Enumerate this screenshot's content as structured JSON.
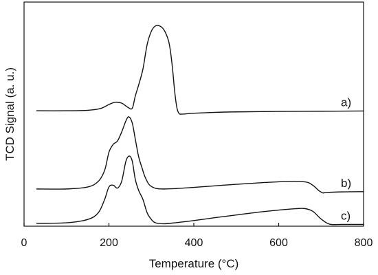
{
  "chart_data": {
    "type": "line",
    "xlabel": "Temperature (°C)",
    "ylabel": "TCD Signal (a. u.)",
    "xlim": [
      0,
      800
    ],
    "ylim": [
      0,
      100
    ],
    "xticks": [
      0,
      200,
      400,
      600,
      800
    ],
    "y_tick_labels": false,
    "grid": false,
    "series": [
      {
        "name": "a)",
        "x": [
          30,
          100,
          150,
          180,
          200,
          215,
          230,
          245,
          255,
          262,
          270,
          280,
          290,
          300,
          310,
          320,
          330,
          340,
          345,
          350,
          355,
          360,
          365,
          370,
          380,
          400,
          450,
          500,
          600,
          700,
          800
        ],
        "y": [
          51.5,
          51.5,
          51.7,
          52.5,
          54.3,
          55.3,
          54.9,
          53.0,
          52.6,
          58,
          63,
          70,
          81,
          87,
          89.4,
          89.3,
          87.5,
          83,
          78,
          70,
          60,
          53,
          50.3,
          50.0,
          50.1,
          50.4,
          50.8,
          51.0,
          51.2,
          51.3,
          51.4
        ]
      },
      {
        "name": "b)",
        "x": [
          30,
          100,
          150,
          175,
          190,
          200,
          210,
          220,
          230,
          240,
          247,
          255,
          262,
          270,
          278,
          285,
          295,
          310,
          330,
          360,
          400,
          450,
          500,
          600,
          660,
          680,
          695,
          705,
          710,
          750,
          800
        ],
        "y": [
          16.6,
          16.6,
          17.5,
          20,
          25,
          33,
          36.5,
          38,
          42,
          47,
          48.8,
          46,
          39,
          31,
          26,
          22,
          18.5,
          16.9,
          16.6,
          16.8,
          17.3,
          18.0,
          18.7,
          19.8,
          19.8,
          18.3,
          15.8,
          14.8,
          15.0,
          15.3,
          15.4
        ]
      },
      {
        "name": "c)",
        "x": [
          30,
          100,
          150,
          175,
          190,
          200,
          210,
          220,
          230,
          240,
          248,
          255,
          262,
          270,
          280,
          290,
          300,
          310,
          330,
          360,
          400,
          450,
          500,
          550,
          600,
          640,
          660,
          680,
          700,
          720,
          750,
          800
        ],
        "y": [
          1.3,
          1.5,
          3.0,
          6,
          12,
          17.5,
          18.3,
          17,
          20,
          29,
          31.3,
          29,
          21,
          16,
          12,
          6,
          3,
          1.5,
          1.1,
          1.6,
          2.5,
          3.8,
          5.0,
          6.2,
          7.2,
          7.8,
          7.9,
          6.7,
          3.2,
          0.9,
          0.8,
          0.8
        ]
      }
    ]
  }
}
